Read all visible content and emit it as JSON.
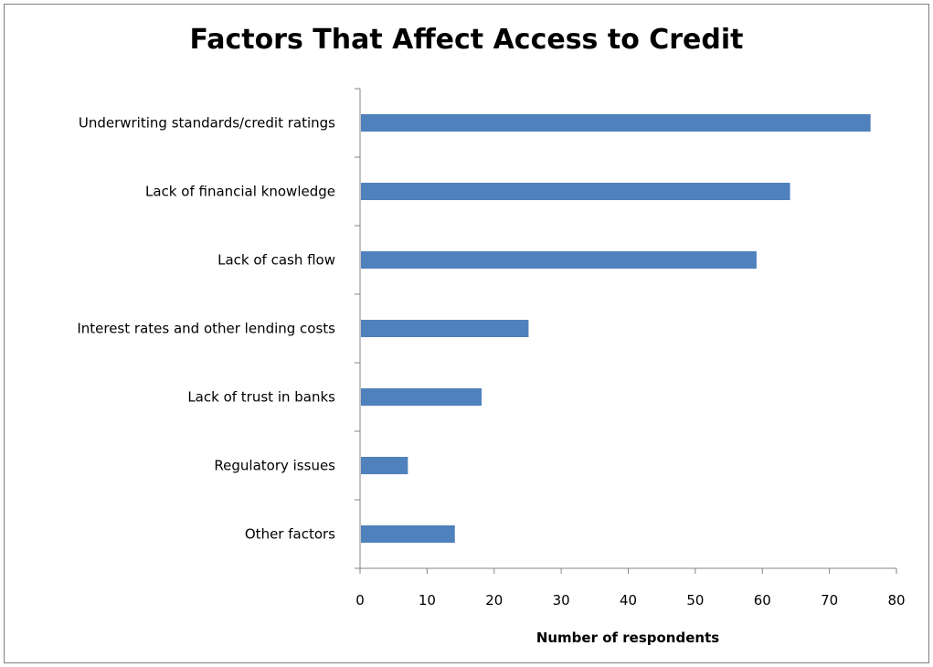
{
  "chart_data": {
    "type": "bar",
    "orientation": "horizontal",
    "title": "Factors That Affect Access to Credit",
    "xlabel": "Number of respondents",
    "ylabel": "",
    "categories": [
      "Underwriting standards/credit ratings",
      "Lack of financial knowledge",
      "Lack of cash flow",
      "Interest rates and other lending costs",
      "Lack of trust in banks",
      "Regulatory issues",
      "Other factors"
    ],
    "values": [
      76,
      64,
      59,
      25,
      18,
      7,
      14
    ],
    "xlim": [
      0,
      80
    ],
    "xticks": [
      0,
      10,
      20,
      30,
      40,
      50,
      60,
      70,
      80
    ],
    "grid": false,
    "legend": "none",
    "bar_color": "#4f81bd"
  }
}
